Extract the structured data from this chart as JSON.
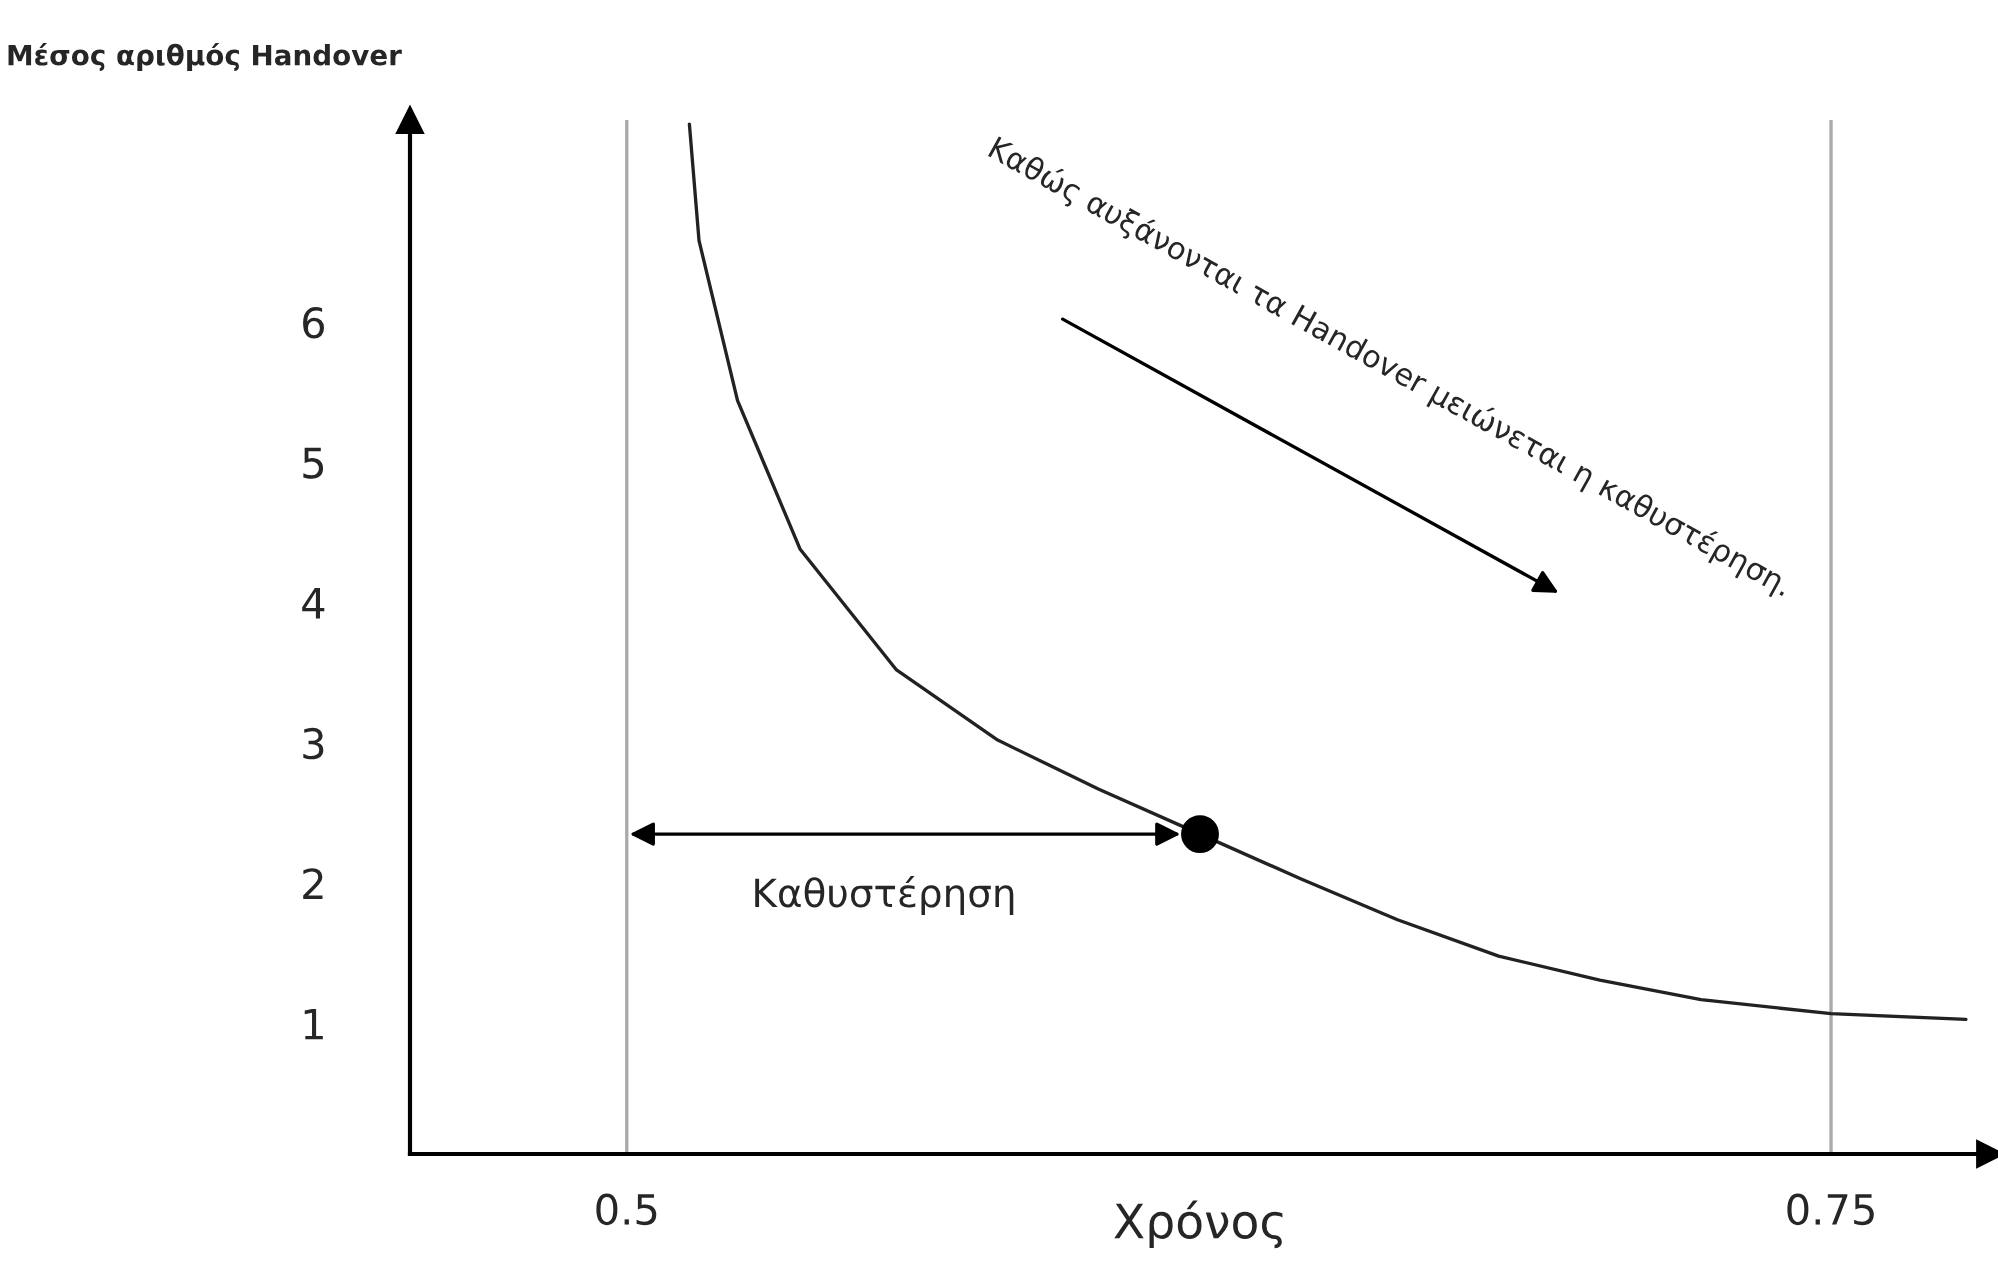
{
  "chart_data": {
    "type": "line",
    "xlabel": "Χρόνος",
    "ylabel": "Μέσος αριθμός Handover",
    "xlim": [
      0.455,
      0.783
    ],
    "ylim": [
      0.07,
      7.44
    ],
    "xticks": [
      0.5,
      0.75
    ],
    "yticks": [
      1,
      2,
      3,
      4,
      5,
      6
    ],
    "grid": false,
    "series": [
      {
        "color": "#222222",
        "x": [
          0.513,
          0.515,
          0.523,
          0.536,
          0.556,
          0.577,
          0.598,
          0.619,
          0.64,
          0.66,
          0.681,
          0.702,
          0.723,
          0.75,
          0.778
        ],
        "values": [
          7.41,
          6.58,
          5.44,
          4.38,
          3.52,
          3.02,
          2.67,
          2.35,
          2.03,
          1.74,
          1.48,
          1.31,
          1.17,
          1.07,
          1.03
        ]
      },
      {
        "type": "scatter",
        "color": "#000000",
        "marker": "circle",
        "x": [
          0.619
        ],
        "values": [
          2.35
        ]
      }
    ],
    "ref_lines": [
      {
        "axis": "x",
        "value": 0.5,
        "color": "#aaaaaa"
      },
      {
        "axis": "x",
        "value": 0.75,
        "color": "#aaaaaa"
      }
    ],
    "annotations": [
      "Καθυστέρηση",
      "Καθώς αυξάνονται τα Handover μειώνεται η καθυστέρηση."
    ]
  }
}
